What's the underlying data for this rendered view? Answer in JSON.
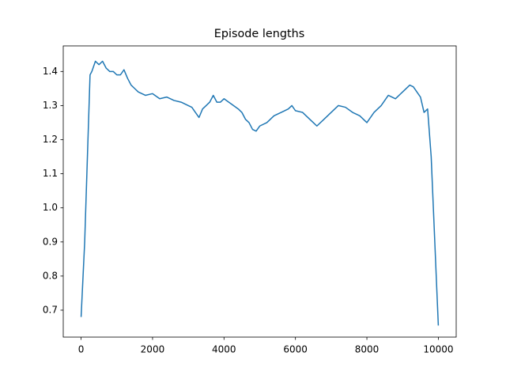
{
  "chart_data": {
    "type": "line",
    "title": "Episode lengths",
    "color": "#1f77b4",
    "x": [
      0,
      100,
      250,
      300,
      400,
      500,
      600,
      700,
      800,
      900,
      1000,
      1100,
      1200,
      1300,
      1400,
      1500,
      1600,
      1800,
      2000,
      2200,
      2400,
      2600,
      2800,
      3000,
      3100,
      3200,
      3300,
      3400,
      3500,
      3600,
      3700,
      3800,
      3900,
      4000,
      4200,
      4400,
      4500,
      4600,
      4700,
      4800,
      4900,
      5000,
      5200,
      5400,
      5600,
      5800,
      5900,
      6000,
      6200,
      6400,
      6500,
      6600,
      6800,
      7000,
      7200,
      7400,
      7600,
      7800,
      8000,
      8200,
      8400,
      8600,
      8800,
      9000,
      9200,
      9300,
      9400,
      9500,
      9600,
      9700,
      9800,
      10000
    ],
    "values": [
      0.68,
      0.9,
      1.39,
      1.4,
      1.43,
      1.42,
      1.43,
      1.41,
      1.4,
      1.4,
      1.39,
      1.39,
      1.405,
      1.38,
      1.36,
      1.35,
      1.34,
      1.33,
      1.335,
      1.32,
      1.325,
      1.315,
      1.31,
      1.3,
      1.295,
      1.28,
      1.265,
      1.29,
      1.3,
      1.31,
      1.33,
      1.31,
      1.31,
      1.32,
      1.305,
      1.29,
      1.28,
      1.26,
      1.25,
      1.23,
      1.225,
      1.24,
      1.25,
      1.27,
      1.28,
      1.29,
      1.3,
      1.285,
      1.28,
      1.26,
      1.25,
      1.24,
      1.26,
      1.28,
      1.3,
      1.295,
      1.28,
      1.27,
      1.25,
      1.28,
      1.3,
      1.33,
      1.32,
      1.34,
      1.36,
      1.355,
      1.34,
      1.325,
      1.28,
      1.29,
      1.15,
      0.655
    ],
    "xlim": [
      -500,
      10500
    ],
    "ylim": [
      0.621,
      1.475
    ],
    "xticks": [
      0,
      2000,
      4000,
      6000,
      8000,
      10000
    ],
    "yticks": [
      0.7,
      0.8,
      0.9,
      {
        "value": 1,
        "label": "1.0"
      },
      1.1,
      1.2,
      1.3,
      1.4
    ]
  }
}
